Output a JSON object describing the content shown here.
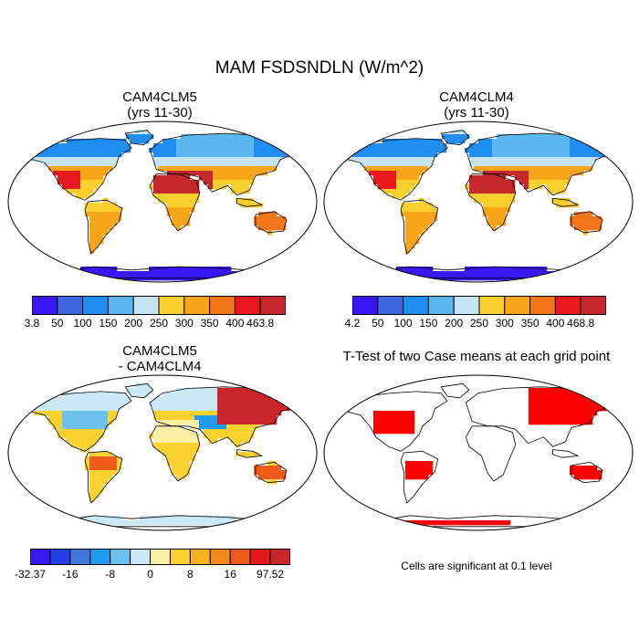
{
  "figure": {
    "title": "MAM FSDSNDLN (W/m^2)",
    "colors": {
      "ocean": "#ffffff",
      "land_outline": "#000000",
      "significant": "#ff0000"
    }
  },
  "panels": {
    "top_left": {
      "title_line1": "CAM4CLM5",
      "title_line2": "(yrs 11-30)",
      "colorbar": {
        "labels": [
          "3.8",
          "50",
          "100",
          "150",
          "200",
          "250",
          "300",
          "350",
          "400",
          "463.8"
        ],
        "colors": [
          "#3a17f5",
          "#3f67e0",
          "#1f8ef0",
          "#5bb7ee",
          "#c6e3f4",
          "#f9cf2d",
          "#f7a519",
          "#f37619",
          "#e8181c",
          "#c5282c"
        ]
      }
    },
    "top_right": {
      "title_line1": "CAM4CLM4",
      "title_line2": "(yrs 11-30)",
      "colorbar": {
        "labels": [
          "4.2",
          "50",
          "100",
          "150",
          "200",
          "250",
          "300",
          "350",
          "400",
          "468.8"
        ],
        "colors": [
          "#3a17f5",
          "#3f67e0",
          "#1f8ef0",
          "#5bb7ee",
          "#c6e3f4",
          "#f9cf2d",
          "#f7a519",
          "#f37619",
          "#e8181c",
          "#c5282c"
        ]
      }
    },
    "bottom_left": {
      "title_line1": "CAM4CLM5",
      "title_line2": "- CAM4CLM4",
      "colorbar": {
        "labels": [
          "-32.37",
          "-16",
          "-8",
          "0",
          "8",
          "16",
          "97.52"
        ],
        "colors": [
          "#3a17f5",
          "#2440e8",
          "#3f77dd",
          "#1f9bef",
          "#6cc0ee",
          "#cbe8f6",
          "#fbf0a3",
          "#f9d230",
          "#f7b21d",
          "#f58a19",
          "#ef5c1a",
          "#e21a1c",
          "#c8262b"
        ]
      }
    },
    "bottom_right": {
      "title": "T-Test of two Case means at each grid point",
      "note": "Cells are significant at 0.1 level"
    }
  }
}
